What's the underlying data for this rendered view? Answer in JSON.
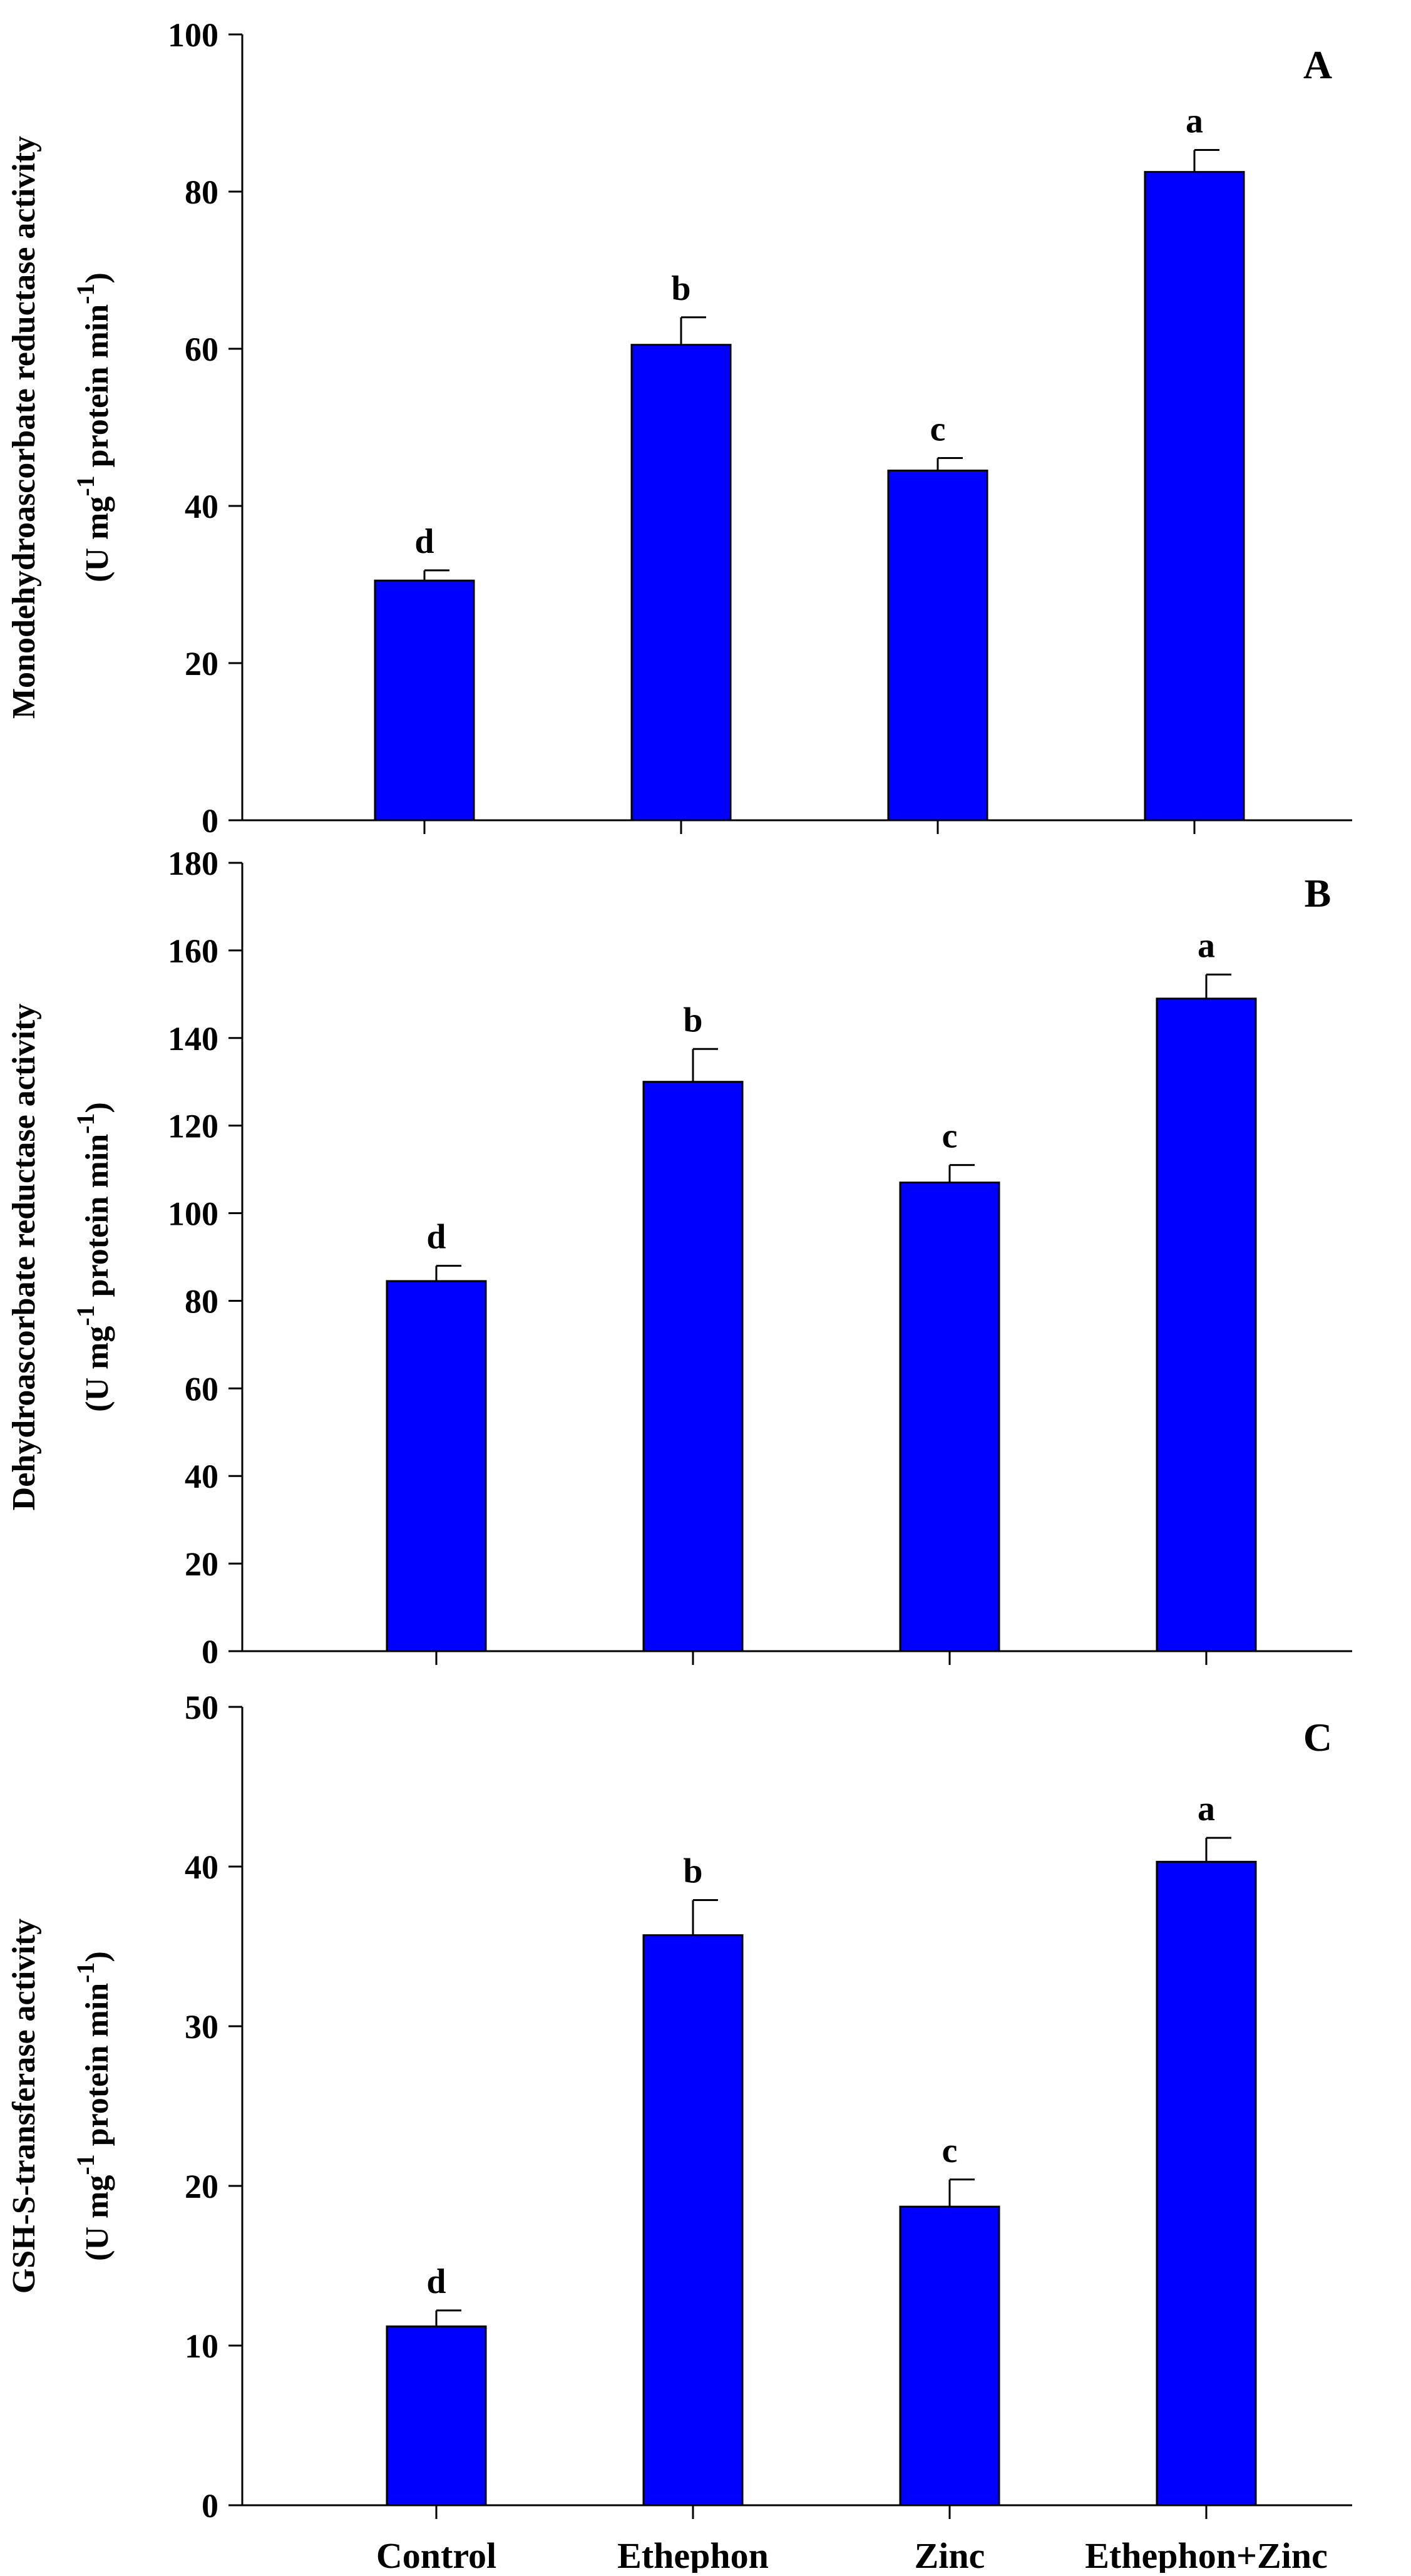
{
  "figure": {
    "background": "#ffffff",
    "bar_color": "#0000ff"
  },
  "chart_data": [
    {
      "type": "bar",
      "panel_label": "A",
      "categories": [
        "Control",
        "Ethephon",
        "Zinc",
        "Ethephon+Zinc"
      ],
      "values": [
        30.5,
        60.5,
        44.5,
        82.5
      ],
      "errors": [
        1.3,
        3.5,
        1.6,
        2.8
      ],
      "significance": [
        "d",
        "b",
        "c",
        "a"
      ],
      "ylabel_line1": "Monodehydroascorbate reductase activity",
      "ylabel_line2": [
        "(U mg",
        "-1",
        " protein min",
        "-1",
        ")"
      ],
      "ylim": [
        0,
        100
      ],
      "yticks": [
        0,
        20,
        40,
        60,
        80,
        100
      ],
      "show_category_labels": false
    },
    {
      "type": "bar",
      "panel_label": "B",
      "categories": [
        "Control",
        "Ethephon",
        "Zinc",
        "Ethephon+Zinc"
      ],
      "values": [
        84.5,
        130,
        107,
        149
      ],
      "errors": [
        3.5,
        7.5,
        4,
        5.5
      ],
      "significance": [
        "d",
        "b",
        "c",
        "a"
      ],
      "ylabel_line1": "Dehydroascorbate reductase activity",
      "ylabel_line2": [
        "(U mg",
        "-1",
        " protein min",
        "-1",
        ")"
      ],
      "ylim": [
        0,
        180
      ],
      "yticks": [
        0,
        20,
        40,
        60,
        80,
        100,
        120,
        140,
        160,
        180
      ],
      "show_category_labels": false
    },
    {
      "type": "bar",
      "panel_label": "C",
      "categories": [
        "Control",
        "Ethephon",
        "Zinc",
        "Ethephon+Zinc"
      ],
      "values": [
        11.2,
        35.7,
        18.7,
        40.3
      ],
      "errors": [
        1.0,
        2.2,
        1.7,
        1.5
      ],
      "significance": [
        "d",
        "b",
        "c",
        "a"
      ],
      "ylabel_line1": "GSH-S-transferase activity",
      "ylabel_line2": [
        "(U mg",
        "-1",
        " protein min",
        "-1",
        ")"
      ],
      "ylim": [
        0,
        50
      ],
      "yticks": [
        0,
        10,
        20,
        30,
        40,
        50
      ],
      "show_category_labels": true
    }
  ]
}
